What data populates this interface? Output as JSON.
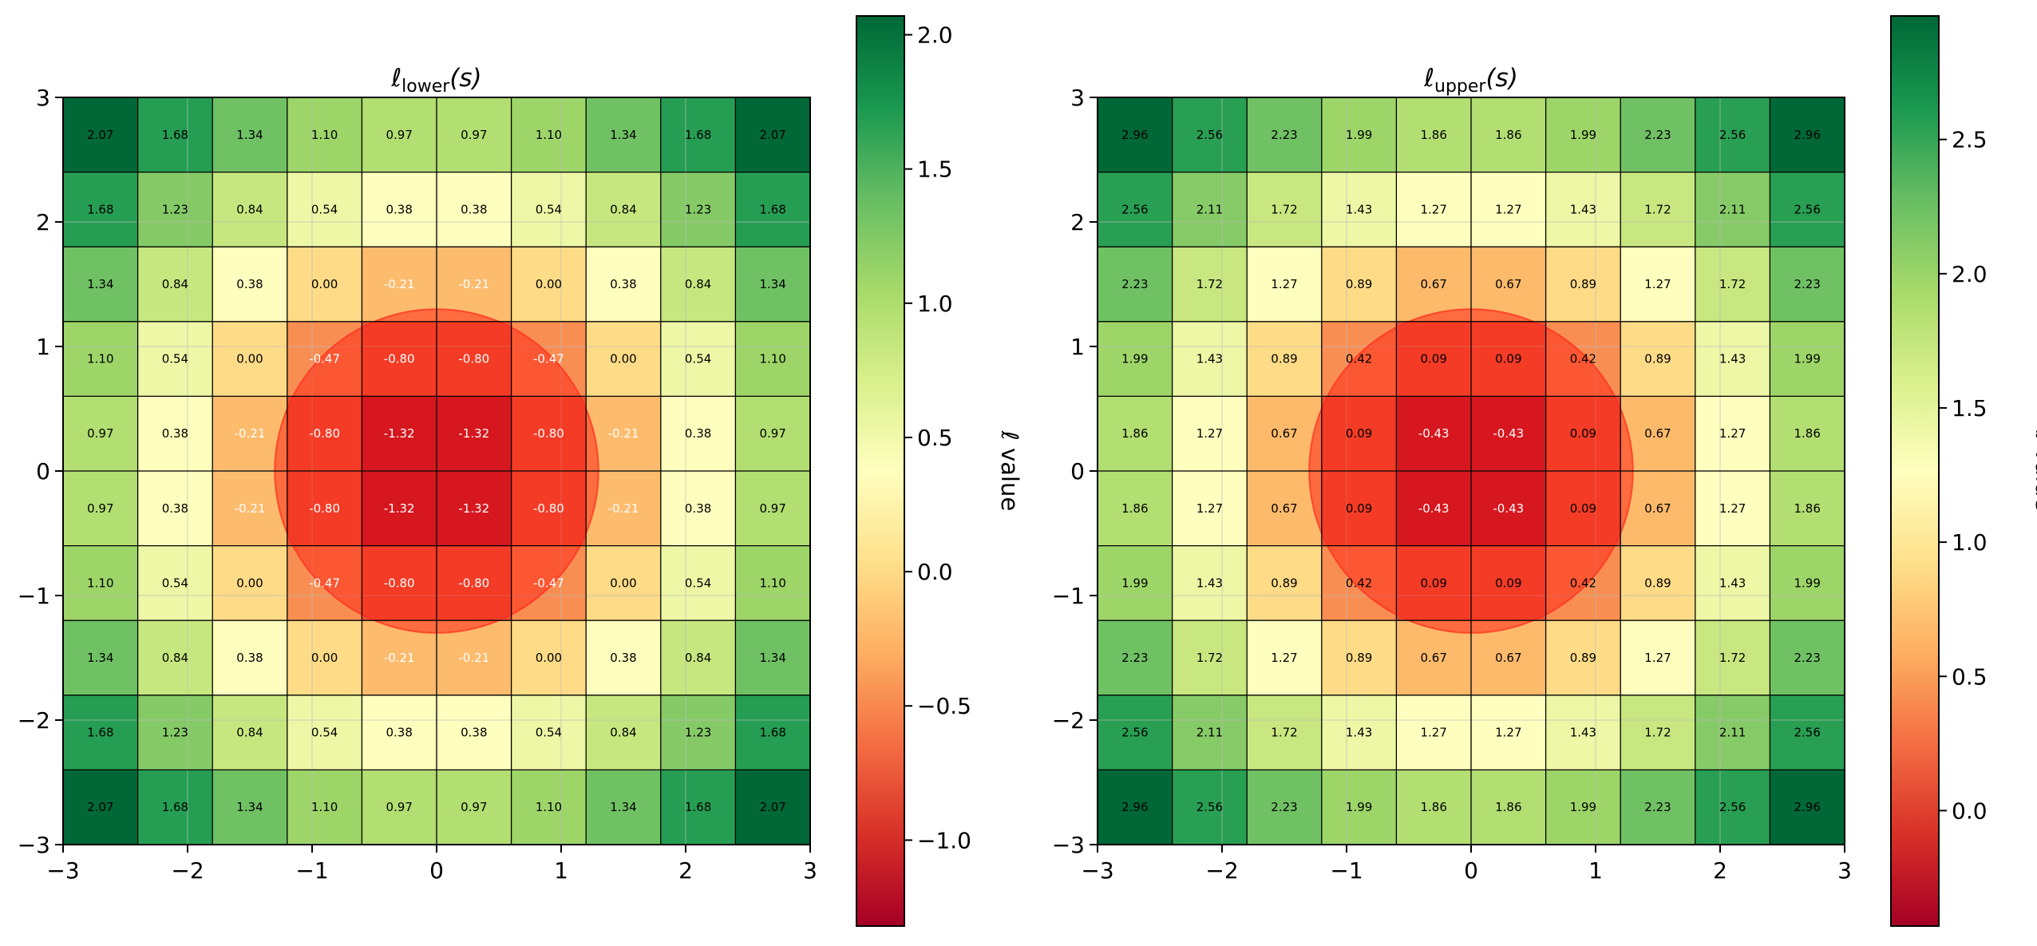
{
  "chart_data": [
    {
      "type": "heatmap",
      "title": {
        "main": "ℓ",
        "sub": "lower",
        "arg": "(s)"
      },
      "xlim": [
        -3,
        3
      ],
      "ylim": [
        -3,
        3
      ],
      "xticks": [
        -3,
        -2,
        -1,
        0,
        1,
        2,
        3
      ],
      "yticks": [
        -3,
        -2,
        -1,
        0,
        1,
        2,
        3
      ],
      "xtick_labels": [
        "−3",
        "−2",
        "−1",
        "0",
        "1",
        "2",
        "3"
      ],
      "ytick_labels": [
        "−3",
        "−2",
        "−1",
        "0",
        "1",
        "2",
        "3"
      ],
      "grid": true,
      "colormap": "RdYlGn",
      "circle": {
        "center": [
          0,
          0
        ],
        "radius": 1.3,
        "color": "#ff2a1a"
      },
      "values": [
        [
          2.07,
          1.68,
          1.34,
          1.1,
          0.97,
          0.97,
          1.1,
          1.34,
          1.68,
          2.07
        ],
        [
          1.68,
          1.23,
          0.84,
          0.54,
          0.38,
          0.38,
          0.54,
          0.84,
          1.23,
          1.68
        ],
        [
          1.34,
          0.84,
          0.38,
          0.0,
          -0.21,
          -0.21,
          0.0,
          0.38,
          0.84,
          1.34
        ],
        [
          1.1,
          0.54,
          0.0,
          -0.47,
          -0.8,
          -0.8,
          -0.47,
          0.0,
          0.54,
          1.1
        ],
        [
          0.97,
          0.38,
          -0.21,
          -0.8,
          -1.32,
          -1.32,
          -0.8,
          -0.21,
          0.38,
          0.97
        ],
        [
          0.97,
          0.38,
          -0.21,
          -0.8,
          -1.32,
          -1.32,
          -0.8,
          -0.21,
          0.38,
          0.97
        ],
        [
          1.1,
          0.54,
          0.0,
          -0.47,
          -0.8,
          -0.8,
          -0.47,
          0.0,
          0.54,
          1.1
        ],
        [
          1.34,
          0.84,
          0.38,
          0.0,
          -0.21,
          -0.21,
          0.0,
          0.38,
          0.84,
          1.34
        ],
        [
          1.68,
          1.23,
          0.84,
          0.54,
          0.38,
          0.38,
          0.54,
          0.84,
          1.23,
          1.68
        ],
        [
          2.07,
          1.68,
          1.34,
          1.1,
          0.97,
          0.97,
          1.1,
          1.34,
          1.68,
          2.07
        ]
      ],
      "colorbar": {
        "label": "ℓ value",
        "range": [
          -1.32,
          2.07
        ],
        "ticks": [
          -1.0,
          -0.5,
          0.0,
          0.5,
          1.0,
          1.5,
          2.0
        ],
        "tick_labels": [
          "−1.0",
          "−0.5",
          "0.0",
          "0.5",
          "1.0",
          "1.5",
          "2.0"
        ]
      }
    },
    {
      "type": "heatmap",
      "title": {
        "main": "ℓ",
        "sub": "upper",
        "arg": "(s)"
      },
      "xlim": [
        -3,
        3
      ],
      "ylim": [
        -3,
        3
      ],
      "xticks": [
        -3,
        -2,
        -1,
        0,
        1,
        2,
        3
      ],
      "yticks": [
        -3,
        -2,
        -1,
        0,
        1,
        2,
        3
      ],
      "xtick_labels": [
        "−3",
        "−2",
        "−1",
        "0",
        "1",
        "2",
        "3"
      ],
      "ytick_labels": [
        "−3",
        "−2",
        "−1",
        "0",
        "1",
        "2",
        "3"
      ],
      "grid": true,
      "colormap": "RdYlGn",
      "circle": {
        "center": [
          0,
          0
        ],
        "radius": 1.3,
        "color": "#ff2a1a"
      },
      "values": [
        [
          2.96,
          2.56,
          2.23,
          1.99,
          1.86,
          1.86,
          1.99,
          2.23,
          2.56,
          2.96
        ],
        [
          2.56,
          2.11,
          1.72,
          1.43,
          1.27,
          1.27,
          1.43,
          1.72,
          2.11,
          2.56
        ],
        [
          2.23,
          1.72,
          1.27,
          0.89,
          0.67,
          0.67,
          0.89,
          1.27,
          1.72,
          2.23
        ],
        [
          1.99,
          1.43,
          0.89,
          0.42,
          0.09,
          0.09,
          0.42,
          0.89,
          1.43,
          1.99
        ],
        [
          1.86,
          1.27,
          0.67,
          0.09,
          -0.43,
          -0.43,
          0.09,
          0.67,
          1.27,
          1.86
        ],
        [
          1.86,
          1.27,
          0.67,
          0.09,
          -0.43,
          -0.43,
          0.09,
          0.67,
          1.27,
          1.86
        ],
        [
          1.99,
          1.43,
          0.89,
          0.42,
          0.09,
          0.09,
          0.42,
          0.89,
          1.43,
          1.99
        ],
        [
          2.23,
          1.72,
          1.27,
          0.89,
          0.67,
          0.67,
          0.89,
          1.27,
          1.72,
          2.23
        ],
        [
          2.56,
          2.11,
          1.72,
          1.43,
          1.27,
          1.27,
          1.43,
          1.72,
          2.11,
          2.56
        ],
        [
          2.96,
          2.56,
          2.23,
          1.99,
          1.86,
          1.86,
          1.99,
          2.23,
          2.56,
          2.96
        ]
      ],
      "colorbar": {
        "label": "ℓ value",
        "range": [
          -0.43,
          2.96
        ],
        "ticks": [
          0.0,
          0.5,
          1.0,
          1.5,
          2.0,
          2.5
        ],
        "tick_labels": [
          "0.0",
          "0.5",
          "1.0",
          "1.5",
          "2.0",
          "2.5"
        ]
      }
    }
  ]
}
